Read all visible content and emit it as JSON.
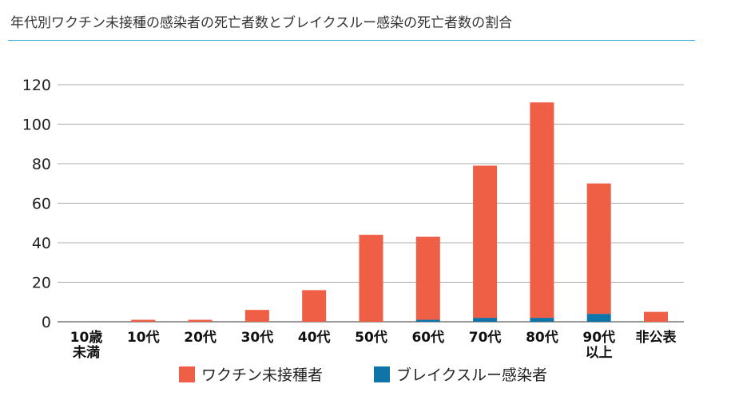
{
  "chart_data": {
    "type": "bar",
    "stacked": true,
    "title": "年代別ワクチン未接種の感染者の死亡者数とブレイクスルー感染の死亡者数の割合",
    "categories": [
      "10歳\n未満",
      "10代",
      "20代",
      "30代",
      "40代",
      "50代",
      "60代",
      "70代",
      "80代",
      "90代\n以上",
      "非公表"
    ],
    "series": [
      {
        "name": "ブレイクスルー感染者",
        "color": "#0f75a8",
        "values": [
          0,
          0,
          0,
          0,
          0,
          0,
          1,
          2,
          2,
          4,
          0
        ]
      },
      {
        "name": "ワクチン未接種者",
        "color": "#ef5f45",
        "values": [
          0,
          1,
          1,
          6,
          16,
          44,
          42,
          77,
          109,
          66,
          5
        ]
      }
    ],
    "yticks": [
      0,
      20,
      40,
      60,
      80,
      100,
      120
    ],
    "ylim": [
      0,
      120
    ],
    "grid": true,
    "legend": "bottom",
    "xlabel": "",
    "ylabel": ""
  }
}
